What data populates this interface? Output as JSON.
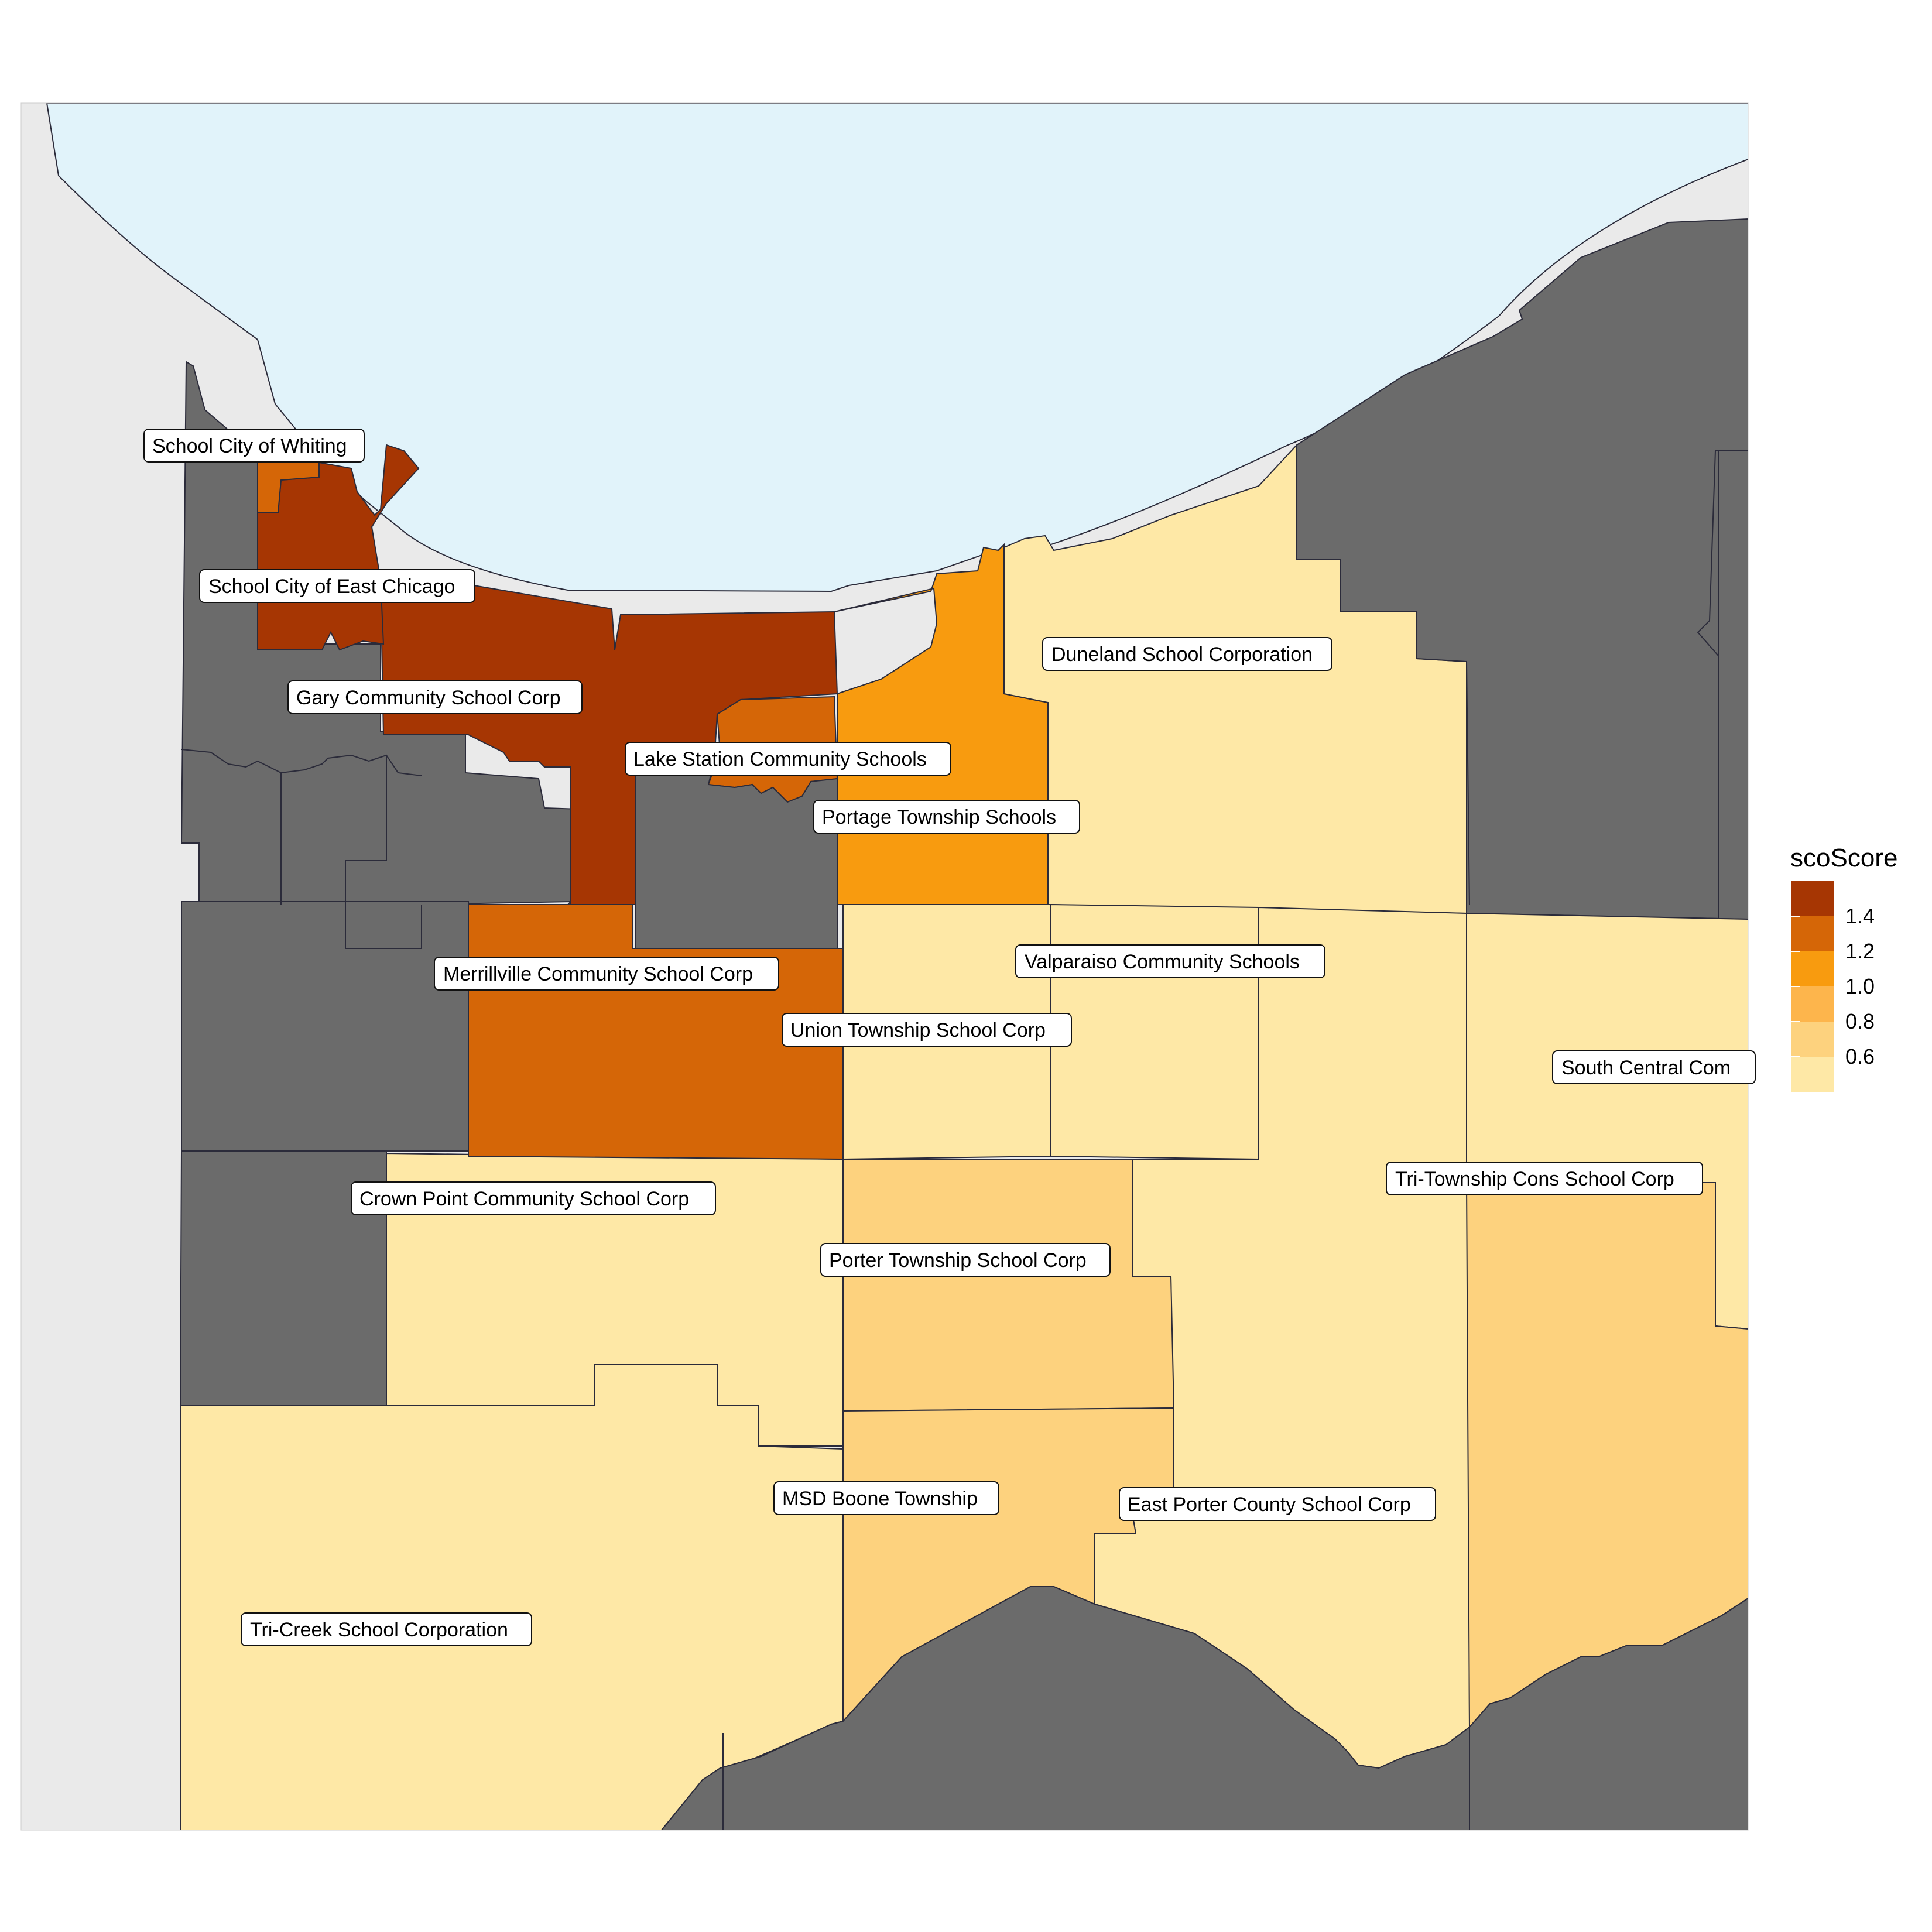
{
  "legend": {
    "title": "scoScore",
    "breaks": [
      "1.4",
      "1.2",
      "1.0",
      "0.8",
      "0.6"
    ],
    "colors": [
      "#A63603",
      "#D56607",
      "#F89B0F",
      "#FDB54C",
      "#FDD27E",
      "#FEE8A6"
    ]
  },
  "colors": {
    "water": "#E1F3FA",
    "land_background": "#EAEAEA",
    "no_data": "#6B6B6B",
    "border": "#2B2B3A"
  },
  "labels": {
    "whiting": "School City of Whiting",
    "east_chicago": "School City of East Chicago",
    "gary": "Gary Community School Corp",
    "lake_station": "Lake Station Community Schools",
    "portage": "Portage Township Schools",
    "duneland": "Duneland School Corporation",
    "valparaiso": "Valparaiso Community Schools",
    "merrillville": "Merrillville Community School Corp",
    "union": "Union Township School Corp",
    "south_central": "South Central Com",
    "tri_township": "Tri-Township Cons School Corp",
    "crown_point": "Crown Point Community School Corp",
    "porter_township": "Porter Township School Corp",
    "msd_boone": "MSD Boone Township",
    "east_porter": "East Porter County School Corp",
    "tri_creek": "Tri-Creek School Corporation"
  }
}
